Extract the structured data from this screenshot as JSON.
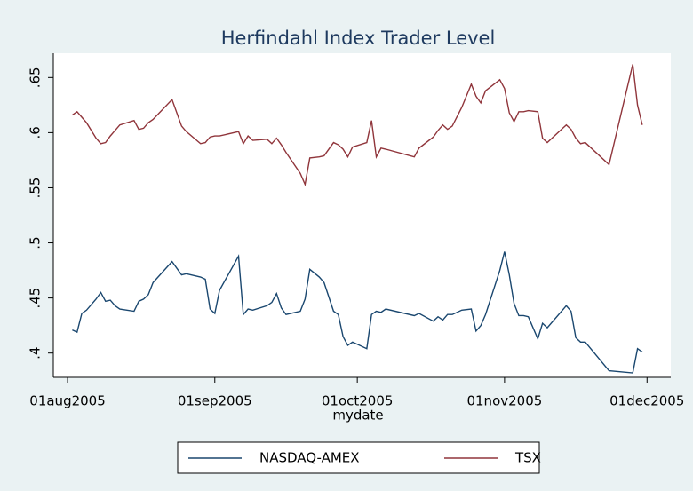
{
  "chart_data": {
    "type": "line",
    "title": "Herfindahl Index Trader Level",
    "xlabel": "mydate",
    "x": [
      "2005-08-02",
      "2005-08-03",
      "2005-08-04",
      "2005-08-05",
      "2005-08-07",
      "2005-08-08",
      "2005-08-09",
      "2005-08-10",
      "2005-08-11",
      "2005-08-12",
      "2005-08-15",
      "2005-08-16",
      "2005-08-17",
      "2005-08-18",
      "2005-08-19",
      "2005-08-23",
      "2005-08-25",
      "2005-08-26",
      "2005-08-29",
      "2005-08-30",
      "2005-08-31",
      "2005-09-01",
      "2005-09-02",
      "2005-09-06",
      "2005-09-07",
      "2005-09-08",
      "2005-09-09",
      "2005-09-12",
      "2005-09-13",
      "2005-09-14",
      "2005-09-15",
      "2005-09-16",
      "2005-09-19",
      "2005-09-20",
      "2005-09-21",
      "2005-09-23",
      "2005-09-24",
      "2005-09-26",
      "2005-09-27",
      "2005-09-28",
      "2005-09-29",
      "2005-09-30",
      "2005-10-03",
      "2005-10-04",
      "2005-10-05",
      "2005-10-06",
      "2005-10-07",
      "2005-10-13",
      "2005-10-14",
      "2005-10-17",
      "2005-10-18",
      "2005-10-19",
      "2005-10-20",
      "2005-10-21",
      "2005-10-23",
      "2005-10-25",
      "2005-10-26",
      "2005-10-27",
      "2005-10-28",
      "2005-10-31",
      "2005-11-01",
      "2005-11-02",
      "2005-11-03",
      "2005-11-04",
      "2005-11-05",
      "2005-11-06",
      "2005-11-08",
      "2005-11-09",
      "2005-11-10",
      "2005-11-14",
      "2005-11-15",
      "2005-11-16",
      "2005-11-17",
      "2005-11-18",
      "2005-11-23",
      "2005-11-28",
      "2005-11-29",
      "2005-11-30"
    ],
    "series": [
      {
        "name": "NASDAQ-AMEX",
        "color": "#1a476f",
        "values": [
          0.421,
          0.419,
          0.436,
          0.439,
          0.449,
          0.455,
          0.447,
          0.448,
          0.443,
          0.44,
          0.438,
          0.447,
          0.449,
          0.453,
          0.464,
          0.483,
          0.471,
          0.472,
          0.469,
          0.467,
          0.44,
          0.436,
          0.457,
          0.488,
          0.435,
          0.44,
          0.439,
          0.443,
          0.446,
          0.454,
          0.441,
          0.435,
          0.438,
          0.449,
          0.476,
          0.469,
          0.464,
          0.438,
          0.435,
          0.415,
          0.407,
          0.41,
          0.404,
          0.435,
          0.438,
          0.437,
          0.44,
          0.434,
          0.436,
          0.429,
          0.433,
          0.43,
          0.435,
          0.435,
          0.439,
          0.44,
          0.42,
          0.425,
          0.435,
          0.475,
          0.492,
          0.471,
          0.445,
          0.434,
          0.434,
          0.433,
          0.413,
          0.427,
          0.423,
          0.443,
          0.438,
          0.414,
          0.41,
          0.41,
          0.384,
          0.382,
          0.404,
          0.401
        ]
      },
      {
        "name": "TSX",
        "color": "#90353b",
        "values": [
          0.616,
          0.619,
          0.614,
          0.609,
          0.595,
          0.59,
          0.591,
          0.597,
          0.602,
          0.607,
          0.611,
          0.603,
          0.604,
          0.609,
          0.612,
          0.63,
          0.606,
          0.601,
          0.59,
          0.591,
          0.596,
          0.597,
          0.597,
          0.601,
          0.59,
          0.597,
          0.593,
          0.594,
          0.59,
          0.595,
          0.589,
          0.582,
          0.563,
          0.553,
          0.577,
          0.578,
          0.579,
          0.591,
          0.589,
          0.585,
          0.578,
          0.587,
          0.591,
          0.611,
          0.578,
          0.586,
          0.585,
          0.578,
          0.586,
          0.596,
          0.602,
          0.607,
          0.603,
          0.606,
          0.623,
          0.644,
          0.633,
          0.627,
          0.638,
          0.648,
          0.64,
          0.618,
          0.61,
          0.619,
          0.619,
          0.62,
          0.619,
          0.595,
          0.591,
          0.607,
          0.603,
          0.595,
          0.59,
          0.591,
          0.571,
          0.662,
          0.625,
          0.607
        ]
      }
    ],
    "xlim": [
      "2005-07-29",
      "2005-12-06"
    ],
    "xticks": [
      {
        "value": "2005-08-01",
        "label": "01aug2005"
      },
      {
        "value": "2005-09-01",
        "label": "01sep2005"
      },
      {
        "value": "2005-10-01",
        "label": "01oct2005"
      },
      {
        "value": "2005-11-01",
        "label": "01nov2005"
      },
      {
        "value": "2005-12-01",
        "label": "01dec2005"
      }
    ],
    "ylim": [
      0.378,
      0.672
    ],
    "yticks": [
      {
        "value": 0.4,
        "label": ".4"
      },
      {
        "value": 0.45,
        "label": ".45"
      },
      {
        "value": 0.5,
        "label": ".5"
      },
      {
        "value": 0.55,
        "label": ".55"
      },
      {
        "value": 0.6,
        "label": ".6"
      },
      {
        "value": 0.65,
        "label": ".65"
      }
    ],
    "legend": "bottom"
  }
}
